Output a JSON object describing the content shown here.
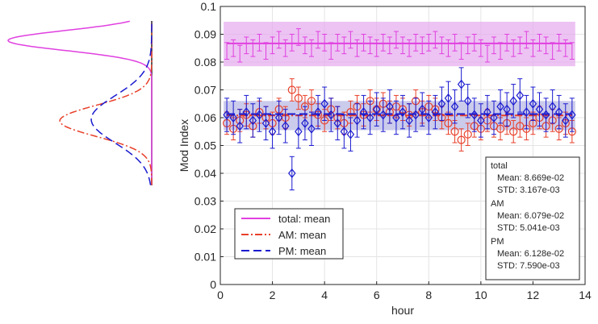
{
  "chart_data": [
    {
      "type": "line",
      "xlabel": "hour",
      "ylabel": "Mod Index",
      "xlim": [
        0,
        14
      ],
      "ylim": [
        0,
        0.1
      ],
      "xticks": [
        "0",
        "2",
        "4",
        "6",
        "8",
        "10",
        "12",
        "14"
      ],
      "yticks": [
        "0",
        "0.01",
        "0.02",
        "0.03",
        "0.04",
        "0.05",
        "0.06",
        "0.07",
        "0.08",
        "0.09",
        "0.1"
      ],
      "grid": "on",
      "legend_position": "bottom-left",
      "legend": [
        "total: mean",
        "AM: mean",
        "PM: mean"
      ],
      "x": [
        0.25,
        0.5,
        0.75,
        1.0,
        1.25,
        1.5,
        1.75,
        2.0,
        2.25,
        2.5,
        2.75,
        3.0,
        3.25,
        3.5,
        3.75,
        4.0,
        4.25,
        4.5,
        4.75,
        5.0,
        5.25,
        5.5,
        5.75,
        6.0,
        6.25,
        6.5,
        6.75,
        7.0,
        7.25,
        7.5,
        7.75,
        8.0,
        8.25,
        8.5,
        8.75,
        9.0,
        9.25,
        9.5,
        9.75,
        10.0,
        10.25,
        10.5,
        10.75,
        11.0,
        11.25,
        11.5,
        11.75,
        12.0,
        12.25,
        12.5,
        12.75,
        13.0,
        13.25,
        13.5
      ],
      "series": [
        {
          "name": "total",
          "color": "#e040e0",
          "mean": 0.0867,
          "std_band": [
            0.0785,
            0.0945
          ],
          "values": [
            0.084,
            0.085,
            0.083,
            0.086,
            0.085,
            0.087,
            0.084,
            0.086,
            0.088,
            0.085,
            0.087,
            0.089,
            0.086,
            0.085,
            0.088,
            0.087,
            0.084,
            0.087,
            0.086,
            0.088,
            0.085,
            0.087,
            0.086,
            0.085,
            0.087,
            0.086,
            0.088,
            0.086,
            0.085,
            0.087,
            0.086,
            0.087,
            0.088,
            0.086,
            0.085,
            0.087,
            0.084,
            0.086,
            0.087,
            0.085,
            0.083,
            0.086,
            0.084,
            0.087,
            0.085,
            0.086,
            0.088,
            0.085,
            0.087,
            0.086,
            0.084,
            0.087,
            0.085,
            0.084
          ],
          "errors": [
            0.003,
            0.003,
            0.003,
            0.003,
            0.003,
            0.003,
            0.003,
            0.003,
            0.003,
            0.003,
            0.003,
            0.003,
            0.003,
            0.003,
            0.003,
            0.003,
            0.003,
            0.003,
            0.003,
            0.003,
            0.003,
            0.003,
            0.003,
            0.003,
            0.003,
            0.003,
            0.003,
            0.003,
            0.003,
            0.003,
            0.003,
            0.003,
            0.003,
            0.003,
            0.003,
            0.003,
            0.003,
            0.003,
            0.003,
            0.003,
            0.003,
            0.003,
            0.003,
            0.003,
            0.003,
            0.003,
            0.003,
            0.003,
            0.003,
            0.003,
            0.003,
            0.003,
            0.003,
            0.003
          ]
        },
        {
          "name": "AM",
          "color": "#e8402a",
          "marker": "circle",
          "mean": 0.0608,
          "values": [
            0.058,
            0.056,
            0.059,
            0.061,
            0.057,
            0.062,
            0.06,
            0.058,
            0.063,
            0.06,
            0.07,
            0.067,
            0.064,
            0.066,
            0.061,
            0.059,
            0.063,
            0.06,
            0.058,
            0.062,
            0.064,
            0.061,
            0.066,
            0.063,
            0.065,
            0.062,
            0.064,
            0.063,
            0.061,
            0.066,
            0.062,
            0.064,
            0.063,
            0.06,
            0.058,
            0.055,
            0.052,
            0.054,
            0.057,
            0.056,
            0.059,
            0.057,
            0.056,
            0.058,
            0.055,
            0.057,
            0.056,
            0.058,
            0.06,
            0.057,
            0.059,
            0.056,
            0.058,
            0.055
          ],
          "errors": [
            0.004,
            0.004,
            0.004,
            0.004,
            0.004,
            0.004,
            0.004,
            0.004,
            0.004,
            0.004,
            0.004,
            0.004,
            0.004,
            0.004,
            0.004,
            0.004,
            0.004,
            0.004,
            0.004,
            0.004,
            0.004,
            0.004,
            0.004,
            0.004,
            0.004,
            0.004,
            0.004,
            0.004,
            0.004,
            0.004,
            0.004,
            0.004,
            0.004,
            0.004,
            0.004,
            0.004,
            0.004,
            0.004,
            0.004,
            0.004,
            0.004,
            0.004,
            0.004,
            0.004,
            0.004,
            0.004,
            0.004,
            0.004,
            0.004,
            0.004,
            0.004,
            0.004,
            0.004,
            0.004
          ]
        },
        {
          "name": "PM",
          "color": "#1a1ad0",
          "marker": "diamond",
          "mean": 0.0613,
          "std_band": [
            0.0555,
            0.066
          ],
          "values": [
            0.061,
            0.06,
            0.057,
            0.062,
            0.059,
            0.061,
            0.058,
            0.055,
            0.06,
            0.057,
            0.04,
            0.055,
            0.058,
            0.056,
            0.062,
            0.065,
            0.061,
            0.058,
            0.055,
            0.054,
            0.059,
            0.062,
            0.06,
            0.063,
            0.061,
            0.064,
            0.06,
            0.062,
            0.059,
            0.061,
            0.063,
            0.06,
            0.062,
            0.065,
            0.067,
            0.064,
            0.072,
            0.066,
            0.061,
            0.059,
            0.062,
            0.06,
            0.064,
            0.063,
            0.066,
            0.068,
            0.062,
            0.065,
            0.063,
            0.061,
            0.064,
            0.062,
            0.059,
            0.061
          ],
          "errors": [
            0.006,
            0.006,
            0.006,
            0.006,
            0.006,
            0.006,
            0.006,
            0.006,
            0.006,
            0.006,
            0.006,
            0.006,
            0.006,
            0.006,
            0.006,
            0.006,
            0.006,
            0.006,
            0.006,
            0.006,
            0.006,
            0.006,
            0.006,
            0.006,
            0.006,
            0.006,
            0.006,
            0.006,
            0.006,
            0.006,
            0.006,
            0.006,
            0.006,
            0.006,
            0.006,
            0.006,
            0.006,
            0.006,
            0.006,
            0.006,
            0.006,
            0.006,
            0.006,
            0.006,
            0.006,
            0.006,
            0.006,
            0.006,
            0.006,
            0.006,
            0.006,
            0.006,
            0.006,
            0.006
          ]
        }
      ],
      "stats_box": [
        {
          "label": "total",
          "mean": "Mean: 8.669e-02",
          "std": "STD: 3.167e-03"
        },
        {
          "label": "AM",
          "mean": "Mean: 6.079e-02",
          "std": "STD: 5.041e-03"
        },
        {
          "label": "PM",
          "mean": "Mean: 6.128e-02",
          "std": "STD: 7.590e-03"
        }
      ]
    },
    {
      "type": "line",
      "description_role": "marginal distribution panel",
      "orientation": "vertical",
      "ylim": [
        0,
        0.1
      ],
      "series": [
        {
          "name": "total",
          "color": "#e040e0",
          "style": "solid",
          "center": 0.0867,
          "std": 0.0032
        },
        {
          "name": "AM",
          "color": "#e8402a",
          "style": "dash-dot",
          "center": 0.0608,
          "std": 0.005
        },
        {
          "name": "PM",
          "color": "#1a1ad0",
          "style": "dashed",
          "center": 0.0613,
          "std": 0.0076
        }
      ]
    }
  ]
}
